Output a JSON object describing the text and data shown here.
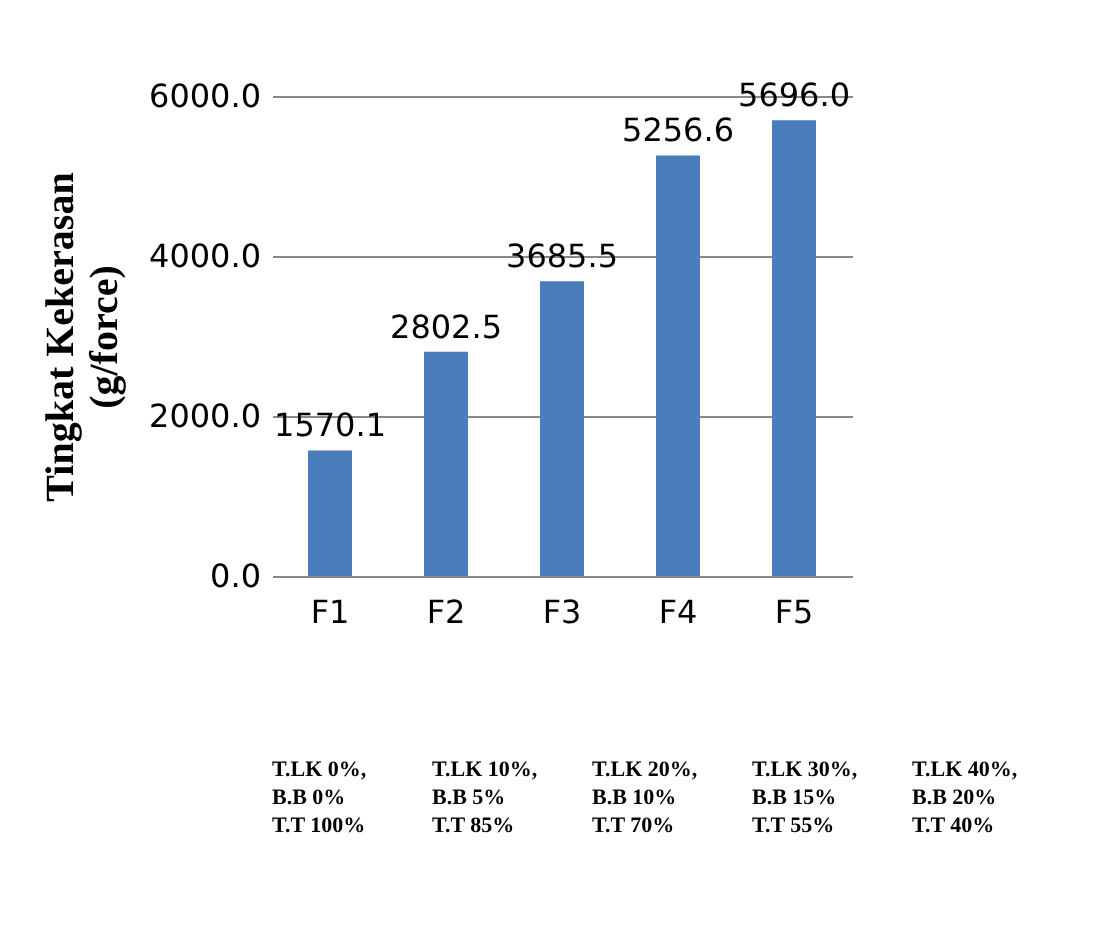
{
  "chart_data": {
    "type": "bar",
    "ylabel": "Tingkat Kekerasan\n(g/force)",
    "categories": [
      "F1",
      "F2",
      "F3",
      "F4",
      "F5"
    ],
    "values": [
      1570.1,
      2802.5,
      3685.5,
      5256.6,
      5696.0
    ],
    "color": "#4a7ebb",
    "value_labels": [
      "1570.1",
      "2802.5",
      "3685.5",
      "5256.6",
      "5696.0"
    ],
    "ylim": [
      0,
      6000
    ],
    "yticks": [
      {
        "value": 0,
        "label": "0.0"
      },
      {
        "value": 2000,
        "label": "2000.0"
      },
      {
        "value": 4000,
        "label": "4000.0"
      },
      {
        "value": 6000,
        "label": "6000.0"
      }
    ],
    "grid": "y",
    "annotations": [
      "T.LK 0%,\nB.B 0%\nT.T 100%",
      "T.LK 10%,\nB.B 5%\nT.T 85%",
      "T.LK 20%,\nB.B 10%\nT.T 70%",
      "T.LK 30%,\nB.B 15%\nT.T 55%",
      "T.LK 40%,\nB.B 20%\nT.T 40%"
    ]
  }
}
